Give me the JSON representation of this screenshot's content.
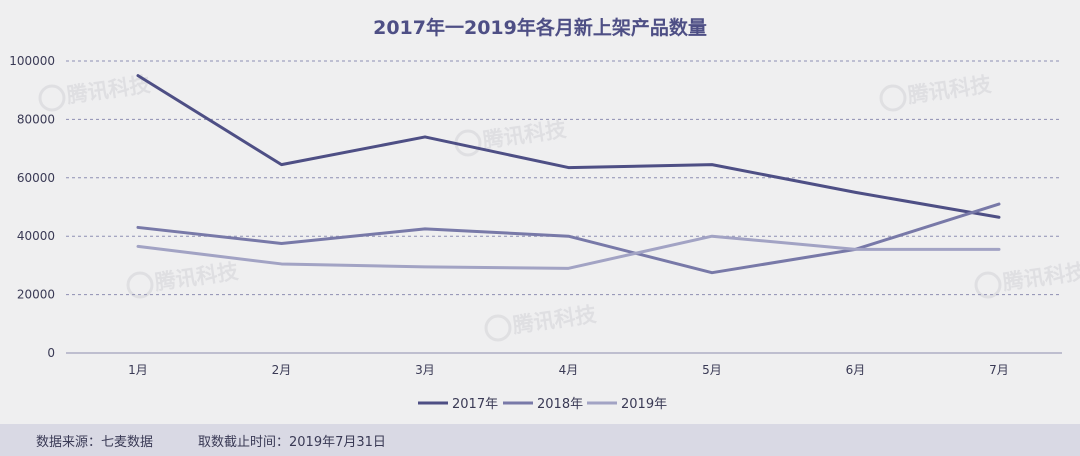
{
  "chart_data": {
    "type": "line",
    "title": "2017年一2019年各月新上架产品数量",
    "categories": [
      "1月",
      "2月",
      "3月",
      "4月",
      "5月",
      "6月",
      "7月"
    ],
    "series": [
      {
        "name": "2017年",
        "values": [
          95000,
          64500,
          74000,
          63500,
          64500,
          55000,
          46500
        ],
        "color": "#4e4f85"
      },
      {
        "name": "2018年",
        "values": [
          43000,
          37500,
          42500,
          40000,
          27500,
          35500,
          51000
        ],
        "color": "#7879a8"
      },
      {
        "name": "2019年",
        "values": [
          36500,
          30500,
          29500,
          29000,
          40000,
          35500,
          35500
        ],
        "color": "#a2a3c4"
      }
    ],
    "ylim": [
      0,
      100000
    ],
    "yticks": [
      0,
      20000,
      40000,
      60000,
      80000,
      100000
    ],
    "xlabel": "",
    "ylabel": "",
    "grid": true,
    "legend_position": "bottom-center"
  },
  "watermark": "腾讯科技",
  "footer": {
    "source": "数据来源：七麦数据",
    "cutoff": "取数截止时间：2019年7月31日"
  }
}
